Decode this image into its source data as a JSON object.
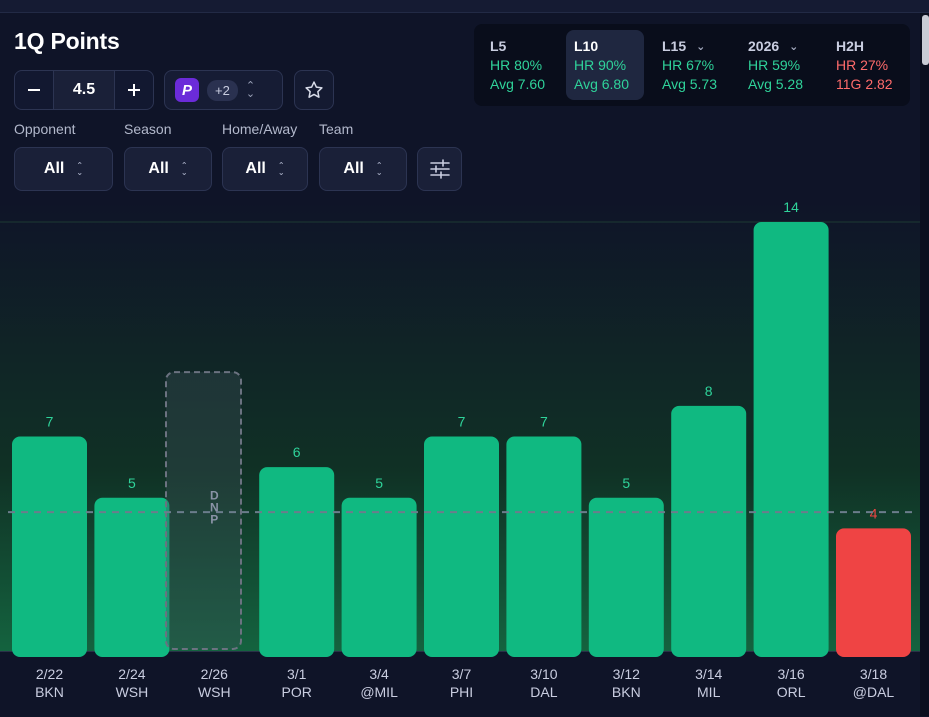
{
  "title": "1Q Points",
  "line_value": "4.5",
  "stepper": {
    "minus": "−",
    "plus": "+"
  },
  "book": {
    "logo": "P",
    "count": "+2"
  },
  "filters": [
    {
      "label": "Opponent",
      "value": "All"
    },
    {
      "label": "Season",
      "value": "All"
    },
    {
      "label": "Home/Away",
      "value": "All"
    },
    {
      "label": "Team",
      "value": "All"
    }
  ],
  "stats": [
    {
      "label": "L5",
      "hr": "HR 80%",
      "avg": "Avg 7.60",
      "color": "green",
      "dropdown": false,
      "active": false
    },
    {
      "label": "L10",
      "hr": "HR 90%",
      "avg": "Avg 6.80",
      "color": "green",
      "dropdown": false,
      "active": true
    },
    {
      "label": "L15",
      "hr": "HR 67%",
      "avg": "Avg 5.73",
      "color": "green",
      "dropdown": true,
      "active": false
    },
    {
      "label": "2026",
      "hr": "HR 59%",
      "avg": "Avg 5.28",
      "color": "green",
      "dropdown": true,
      "active": false
    },
    {
      "label": "H2H",
      "hr": "HR 27%",
      "avg": "11G 2.82",
      "color": "red",
      "dropdown": false,
      "active": false
    }
  ],
  "icons": {
    "minus": "minus-icon",
    "plus": "plus-icon",
    "star": "star-icon",
    "settings": "sliders-icon",
    "chevron": "chevron-down-icon",
    "updown": "chevron-updown-icon"
  },
  "colors": {
    "over": "#10b981",
    "under": "#ef4444",
    "dnp_border": "#6b7280"
  },
  "chart_data": {
    "type": "bar",
    "line": 4.5,
    "ylim": [
      0,
      14
    ],
    "categories": [
      "2/22",
      "2/24",
      "2/26",
      "3/1",
      "3/4",
      "3/7",
      "3/10",
      "3/12",
      "3/14",
      "3/16",
      "3/18"
    ],
    "opponents": [
      "BKN",
      "WSH",
      "WSH",
      "POR",
      "@MIL",
      "PHI",
      "DAL",
      "BKN",
      "MIL",
      "ORL",
      "@DAL"
    ],
    "values": [
      7,
      5,
      null,
      6,
      5,
      7,
      7,
      5,
      8,
      14,
      4
    ],
    "dnp_label": "DNP"
  }
}
